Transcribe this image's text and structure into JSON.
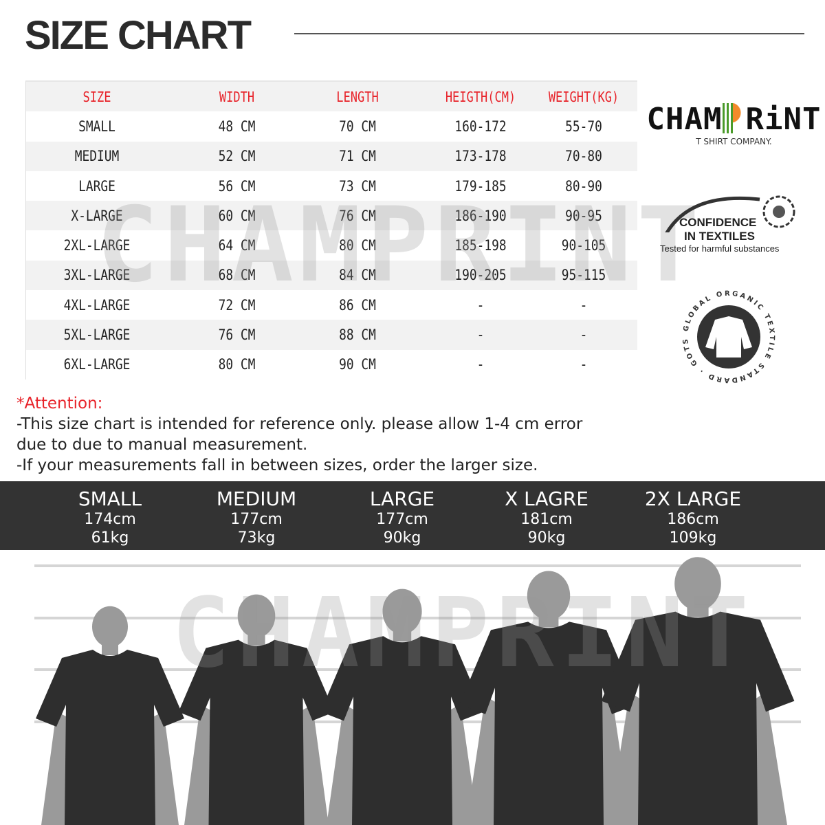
{
  "title": "SIZE CHART",
  "table": {
    "headers": [
      "SIZE",
      "WIDTH",
      "LENGTH",
      "HEIGTH(CM)",
      "WEIGHT(KG)"
    ],
    "rows": [
      [
        "SMALL",
        "48 CM",
        "70 CM",
        "160-172",
        "55-70"
      ],
      [
        "MEDIUM",
        "52 CM",
        "71 CM",
        "173-178",
        "70-80"
      ],
      [
        "LARGE",
        "56 CM",
        "73 CM",
        "179-185",
        "80-90"
      ],
      [
        "X-LARGE",
        "60 CM",
        "76 CM",
        "186-190",
        "90-95"
      ],
      [
        "2XL-LARGE",
        "64 CM",
        "80 CM",
        "185-198",
        "90-105"
      ],
      [
        "3XL-LARGE",
        "68 CM",
        "84 CM",
        "190-205",
        "95-115"
      ],
      [
        "4XL-LARGE",
        "72 CM",
        "86 CM",
        "-",
        "-"
      ],
      [
        "5XL-LARGE",
        "76 CM",
        "88 CM",
        "-",
        "-"
      ],
      [
        "6XL-LARGE",
        "80 CM",
        "90 CM",
        "-",
        "-"
      ]
    ]
  },
  "brand": {
    "name": "CHAMPRINT",
    "tagline": "T SHIRT COMPANY.",
    "accent_orange": "#f28a2a",
    "accent_green": "#4a9a2a"
  },
  "cert": {
    "line1": "CONFIDENCE",
    "line2": "IN TEXTILES",
    "line3": "Tested for harmful substances"
  },
  "gots": {
    "text": "GLOBAL ORGANIC TEXTILE STANDARD · GOTS ·"
  },
  "notes": {
    "attention": "*Attention:",
    "line1": "-This size chart is intended for reference only. please allow 1-4 cm error",
    "line2": "due to due to manual measurement.",
    "line3": "-If your measurements fall in between sizes, order the larger size."
  },
  "models": [
    {
      "size": "SMALL",
      "height": "174cm",
      "weight": "61kg"
    },
    {
      "size": "MEDIUM",
      "height": "177cm",
      "weight": "73kg"
    },
    {
      "size": "LARGE",
      "height": "177cm",
      "weight": "90kg"
    },
    {
      "size": "X LAGRE",
      "height": "181cm",
      "weight": "90kg"
    },
    {
      "size": "2X LARGE",
      "height": "186cm",
      "weight": "109kg"
    }
  ],
  "colors": {
    "header_text": "#e8232a",
    "band": "#333333",
    "shirt": "#2e2e2e",
    "skin": "#9a9a9a"
  }
}
